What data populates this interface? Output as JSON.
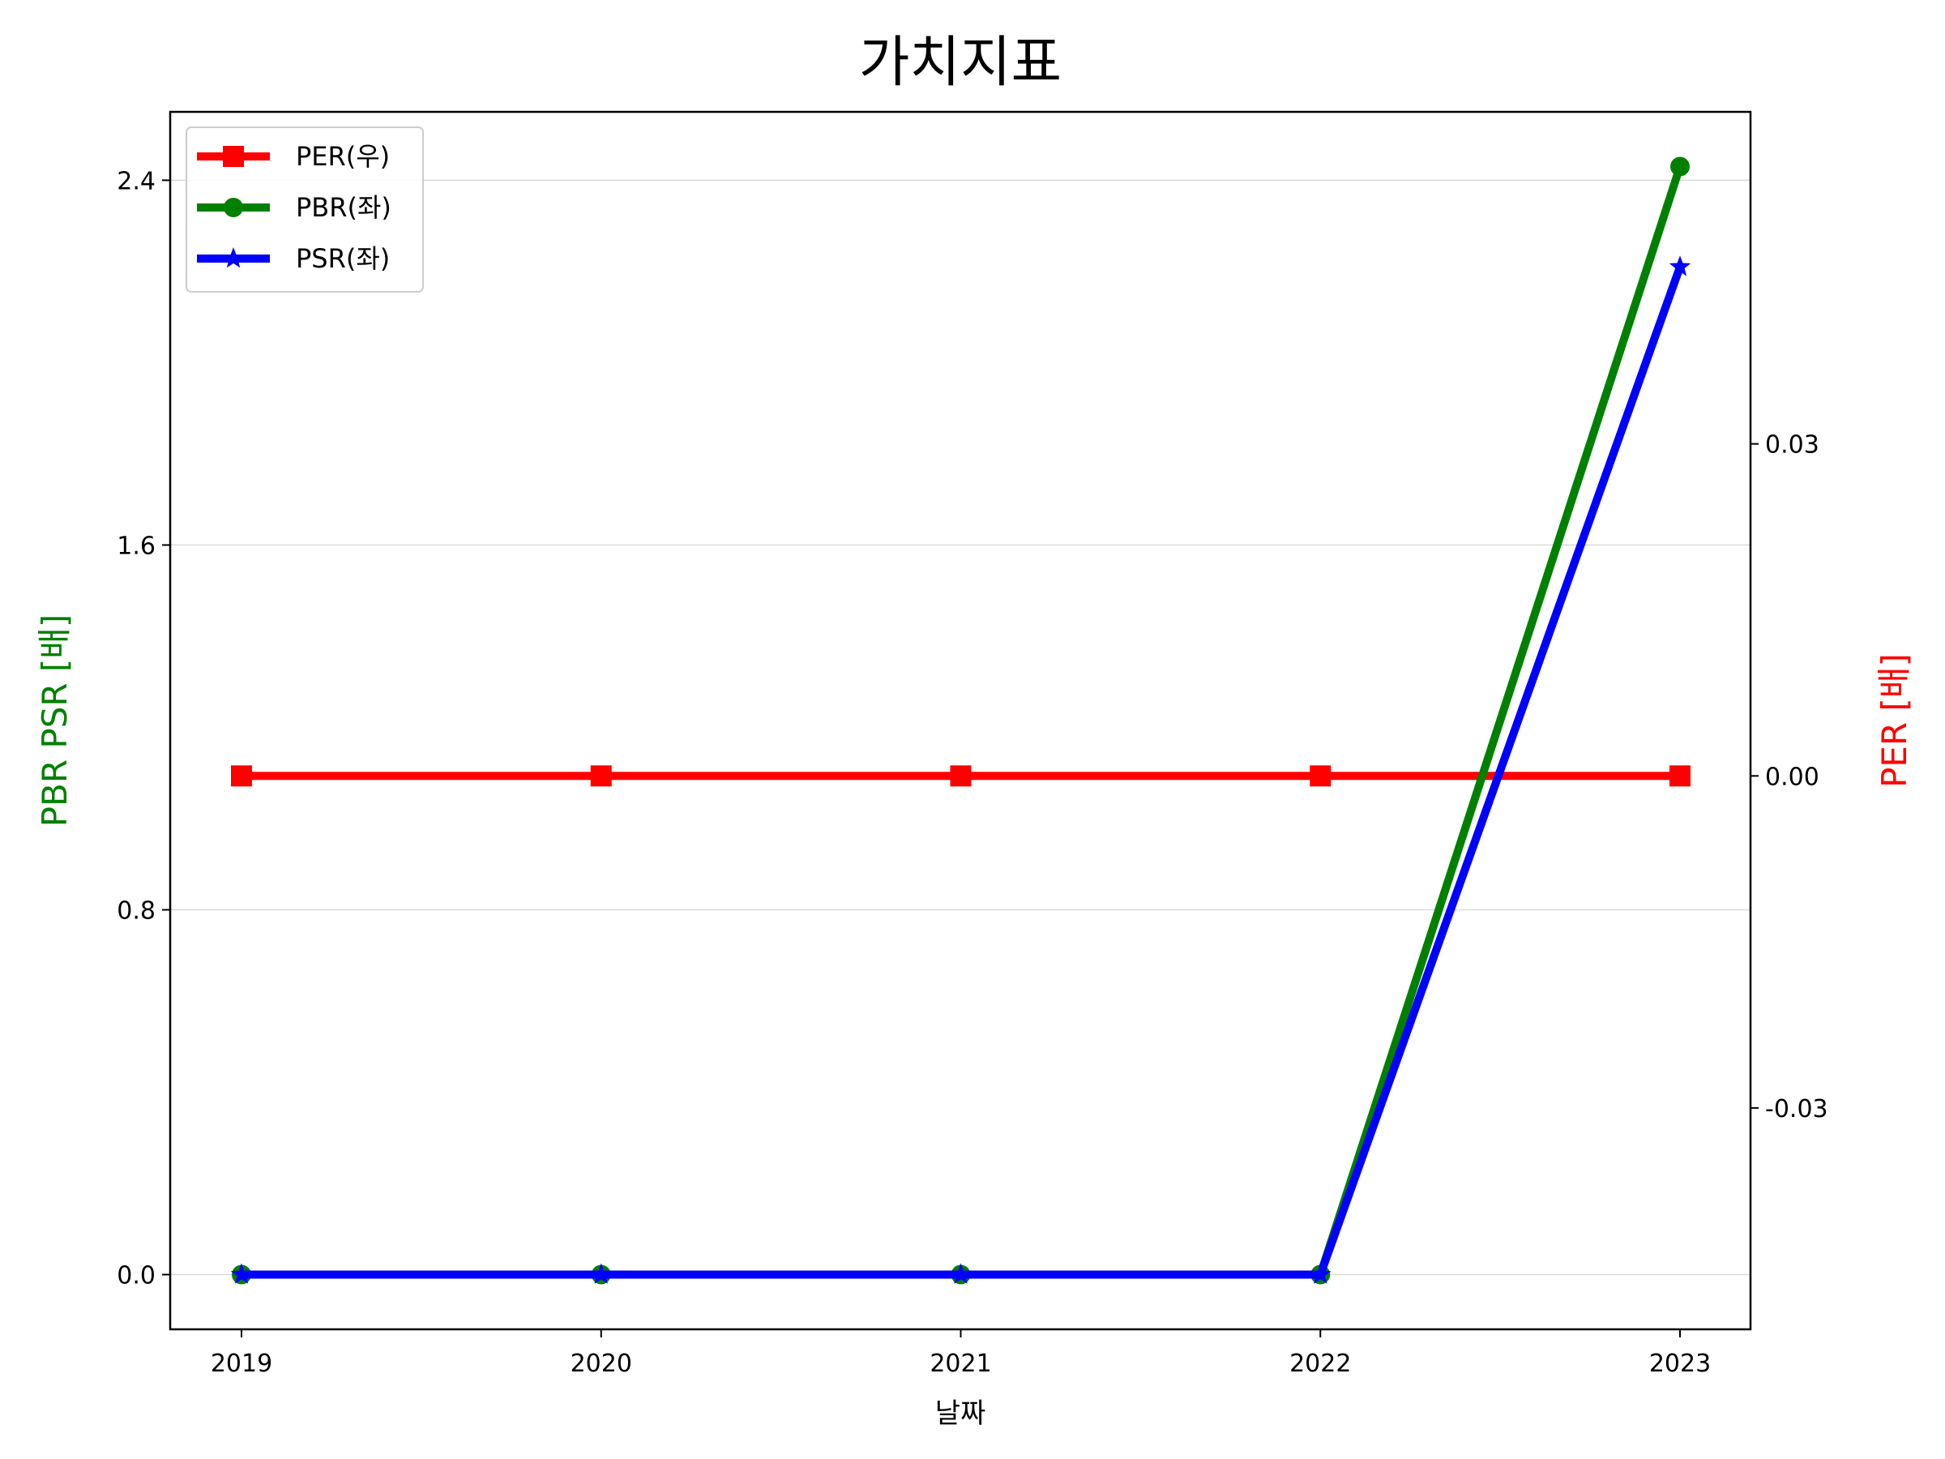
{
  "chart_data": {
    "type": "line",
    "title": "가치지표",
    "xlabel": "날짜",
    "ylabel_left": "PBR PSR [배]",
    "ylabel_right": "PER [배]",
    "categories": [
      "2019",
      "2020",
      "2021",
      "2022",
      "2023"
    ],
    "left_ylim": [
      -0.12,
      2.55
    ],
    "left_ticks": [
      0.0,
      0.8,
      1.6,
      2.4
    ],
    "left_tick_labels": [
      "0.0",
      "0.8",
      "1.6",
      "2.4"
    ],
    "right_ylim": [
      -0.05,
      0.06
    ],
    "right_ticks": [
      -0.03,
      0.0,
      0.03
    ],
    "right_tick_labels": [
      "-0.03",
      "0.00",
      "0.03"
    ],
    "grid": "horizontal",
    "legend_position": "top-left",
    "series": [
      {
        "name": "PER(우)",
        "axis": "right",
        "color": "#ff0000",
        "marker": "square",
        "values": [
          0,
          0,
          0,
          0,
          0
        ]
      },
      {
        "name": "PBR(좌)",
        "axis": "left",
        "color": "#008000",
        "marker": "circle",
        "values": [
          0,
          0,
          0,
          0,
          2.43
        ]
      },
      {
        "name": "PSR(좌)",
        "axis": "left",
        "color": "#0000ff",
        "marker": "star",
        "values": [
          0,
          0,
          0,
          0,
          2.21
        ]
      }
    ]
  }
}
